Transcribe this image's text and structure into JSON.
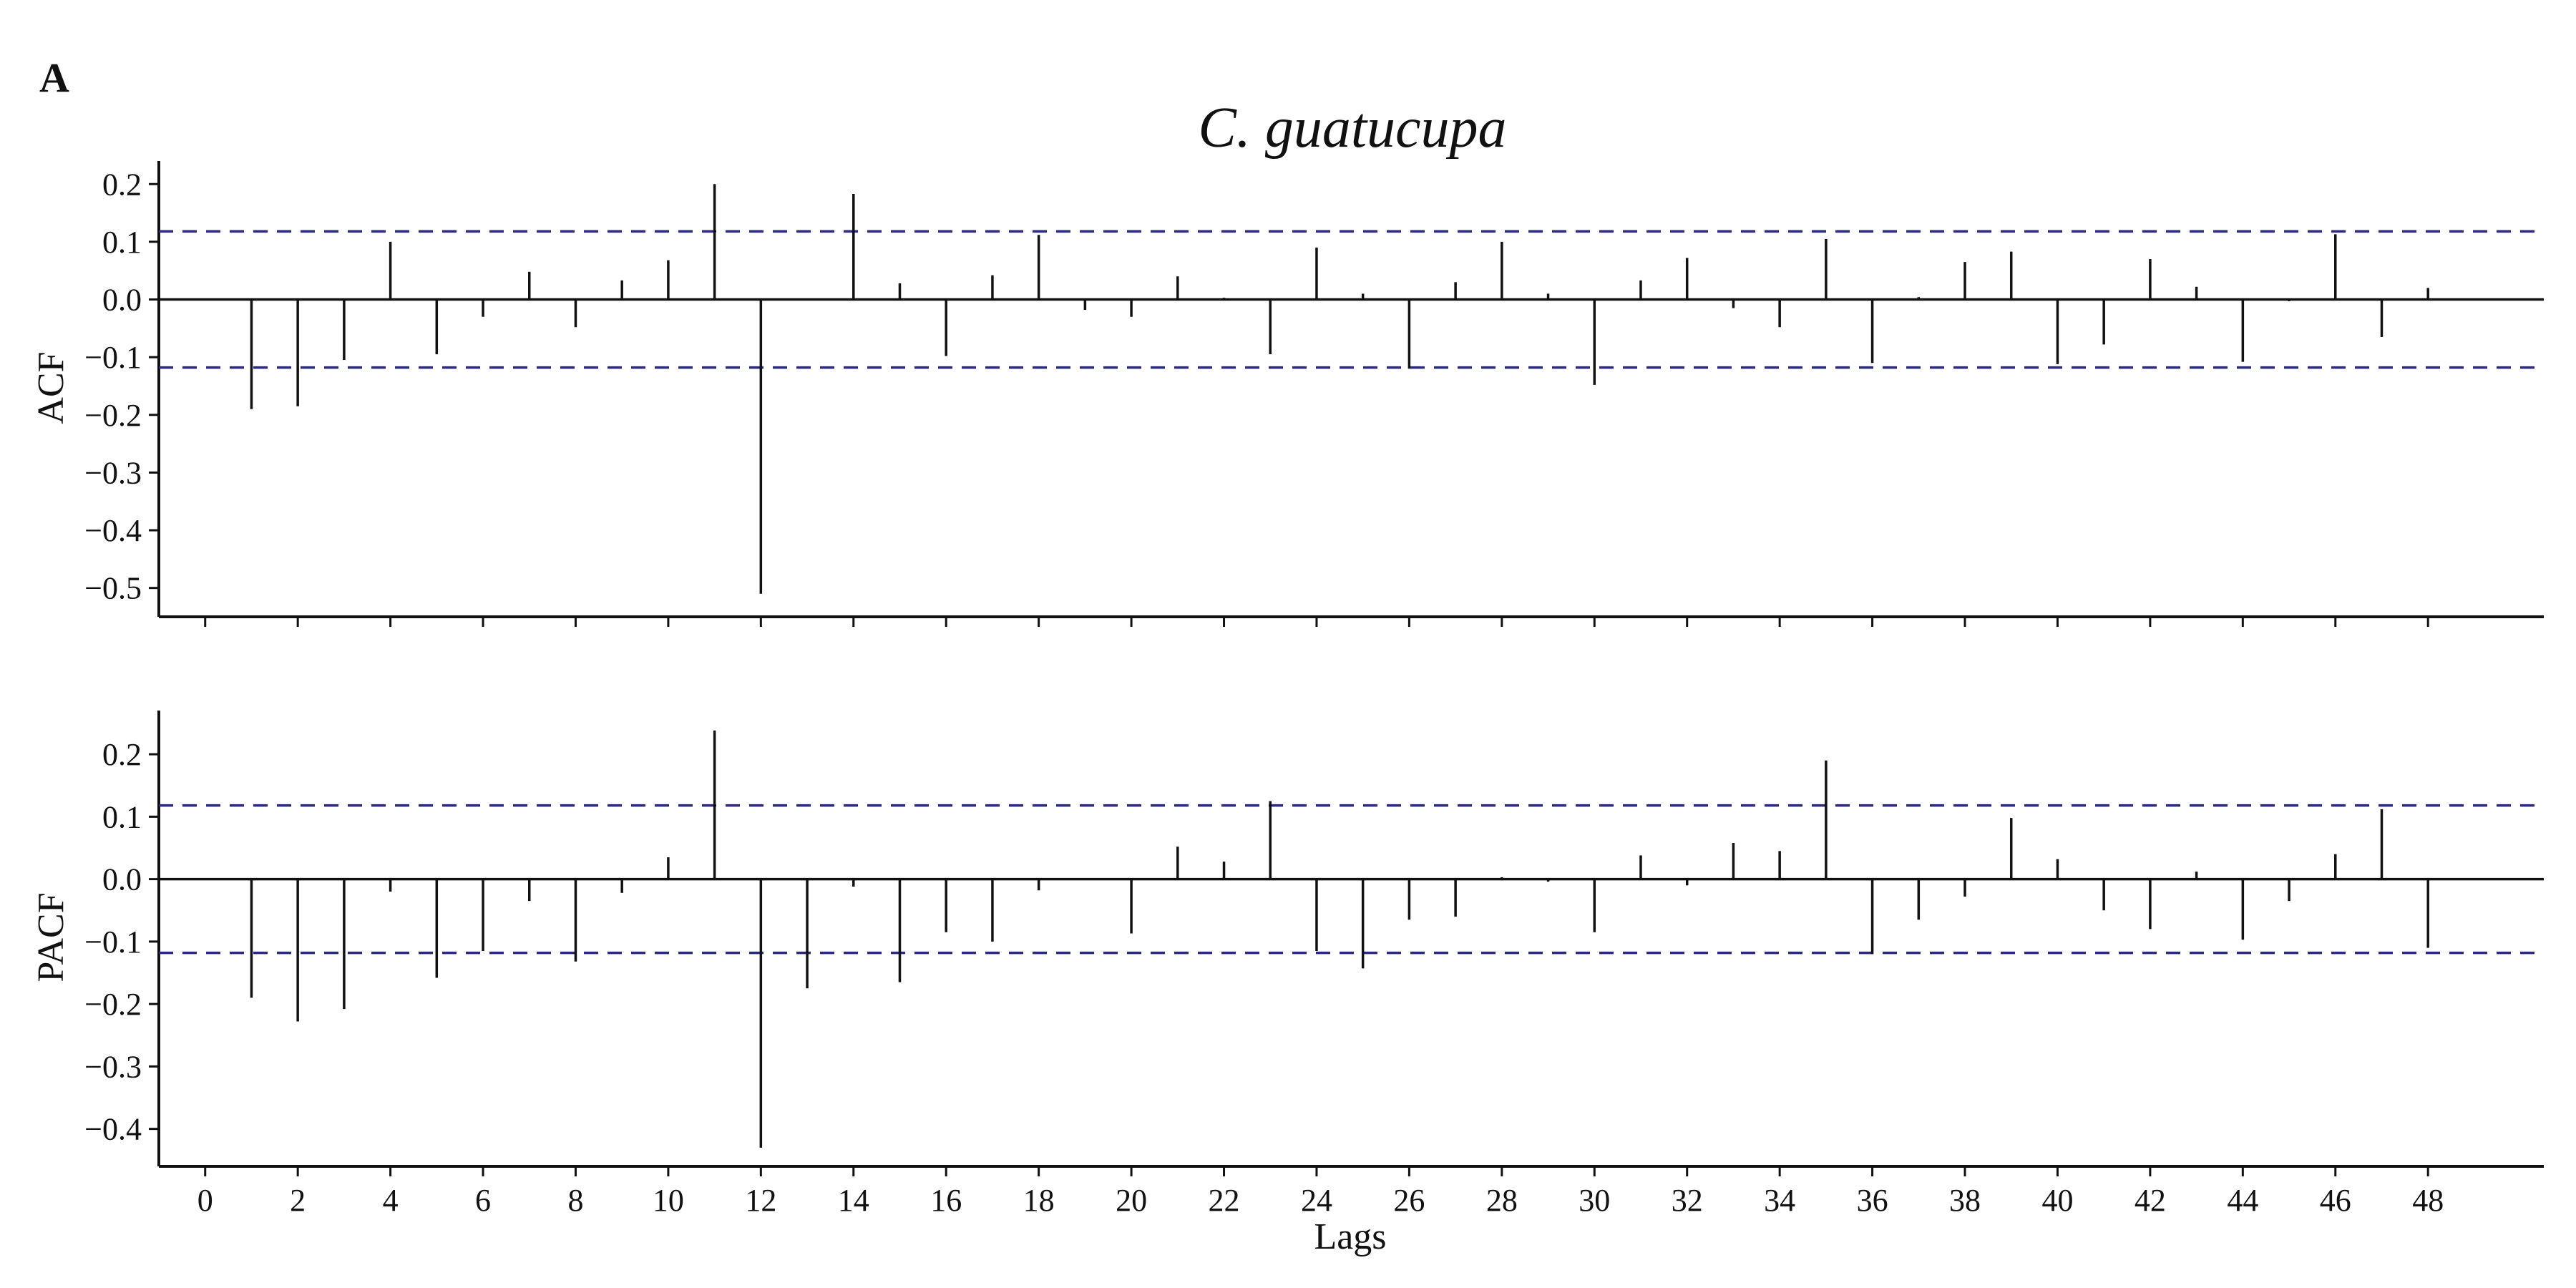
{
  "figure": {
    "panel_letter": "A",
    "title": "C. guatucupa",
    "xlabel": "Lags"
  },
  "colors": {
    "bars": "#111111",
    "confidence_band": "#2a2a78",
    "axes": "#111111"
  },
  "chart_data": [
    {
      "type": "bar",
      "name": "ACF",
      "ylabel": "ACF",
      "ylim": [
        -0.55,
        0.24
      ],
      "xlim": [
        -1,
        50.5
      ],
      "yticks": [
        0.2,
        0.1,
        0.0,
        -0.1,
        -0.2,
        -0.3,
        -0.4,
        -0.5
      ],
      "ytick_labels": [
        "0.2",
        "0.1",
        "0.0",
        "−0.1",
        "−0.2",
        "−0.3",
        "−0.4",
        "−0.5"
      ],
      "confidence_limits": [
        0.118,
        -0.118
      ],
      "x": [
        1,
        2,
        3,
        4,
        5,
        6,
        7,
        8,
        9,
        10,
        11,
        12,
        13,
        14,
        15,
        16,
        17,
        18,
        19,
        20,
        21,
        22,
        23,
        24,
        25,
        26,
        27,
        28,
        29,
        30,
        31,
        32,
        33,
        34,
        35,
        36,
        37,
        38,
        39,
        40,
        41,
        42,
        43,
        44,
        45,
        46,
        47,
        48
      ],
      "values": [
        -0.19,
        -0.185,
        -0.105,
        0.1,
        -0.095,
        -0.03,
        0.048,
        -0.048,
        0.033,
        0.068,
        0.2,
        -0.51,
        0.0,
        0.183,
        0.028,
        -0.098,
        0.042,
        0.112,
        -0.018,
        -0.03,
        0.04,
        0.003,
        -0.095,
        0.09,
        0.01,
        -0.12,
        0.03,
        0.1,
        0.01,
        -0.148,
        0.033,
        0.072,
        -0.015,
        -0.048,
        0.105,
        -0.11,
        0.004,
        0.065,
        0.083,
        -0.112,
        -0.078,
        0.07,
        0.022,
        -0.108,
        -0.003,
        0.113,
        -0.065,
        0.02
      ],
      "grid": false
    },
    {
      "type": "bar",
      "name": "PACF",
      "ylabel": "PACF",
      "ylim": [
        -0.46,
        0.27
      ],
      "xlim": [
        -1,
        50.5
      ],
      "yticks": [
        0.2,
        0.1,
        0.0,
        -0.1,
        -0.2,
        -0.3,
        -0.4
      ],
      "ytick_labels": [
        "0.2",
        "0.1",
        "0.0",
        "−0.1",
        "−0.2",
        "−0.3",
        "−0.4"
      ],
      "confidence_limits": [
        0.118,
        -0.118
      ],
      "x": [
        1,
        2,
        3,
        4,
        5,
        6,
        7,
        8,
        9,
        10,
        11,
        12,
        13,
        14,
        15,
        16,
        17,
        18,
        19,
        20,
        21,
        22,
        23,
        24,
        25,
        26,
        27,
        28,
        29,
        30,
        31,
        32,
        33,
        34,
        35,
        36,
        37,
        38,
        39,
        40,
        41,
        42,
        43,
        44,
        45,
        46,
        47,
        48
      ],
      "values": [
        -0.19,
        -0.228,
        -0.208,
        -0.02,
        -0.158,
        -0.115,
        -0.035,
        -0.132,
        -0.022,
        0.035,
        0.238,
        -0.43,
        -0.175,
        -0.012,
        -0.165,
        -0.085,
        -0.1,
        -0.018,
        0.0,
        -0.087,
        0.052,
        0.028,
        0.125,
        -0.115,
        -0.143,
        -0.065,
        -0.06,
        0.003,
        -0.004,
        -0.085,
        0.038,
        -0.01,
        0.058,
        0.045,
        0.19,
        -0.12,
        -0.065,
        -0.028,
        0.098,
        0.032,
        -0.05,
        -0.08,
        0.012,
        -0.097,
        -0.035,
        0.04,
        0.112,
        -0.11
      ],
      "xticks": [
        0,
        2,
        4,
        6,
        8,
        10,
        12,
        14,
        16,
        18,
        20,
        22,
        24,
        26,
        28,
        30,
        32,
        34,
        36,
        38,
        40,
        42,
        44,
        46,
        48
      ],
      "xtick_labels": [
        "0",
        "2",
        "4",
        "6",
        "8",
        "10",
        "12",
        "14",
        "16",
        "18",
        "20",
        "22",
        "24",
        "26",
        "28",
        "30",
        "32",
        "34",
        "36",
        "38",
        "40",
        "42",
        "44",
        "46",
        "48"
      ],
      "grid": false
    }
  ]
}
